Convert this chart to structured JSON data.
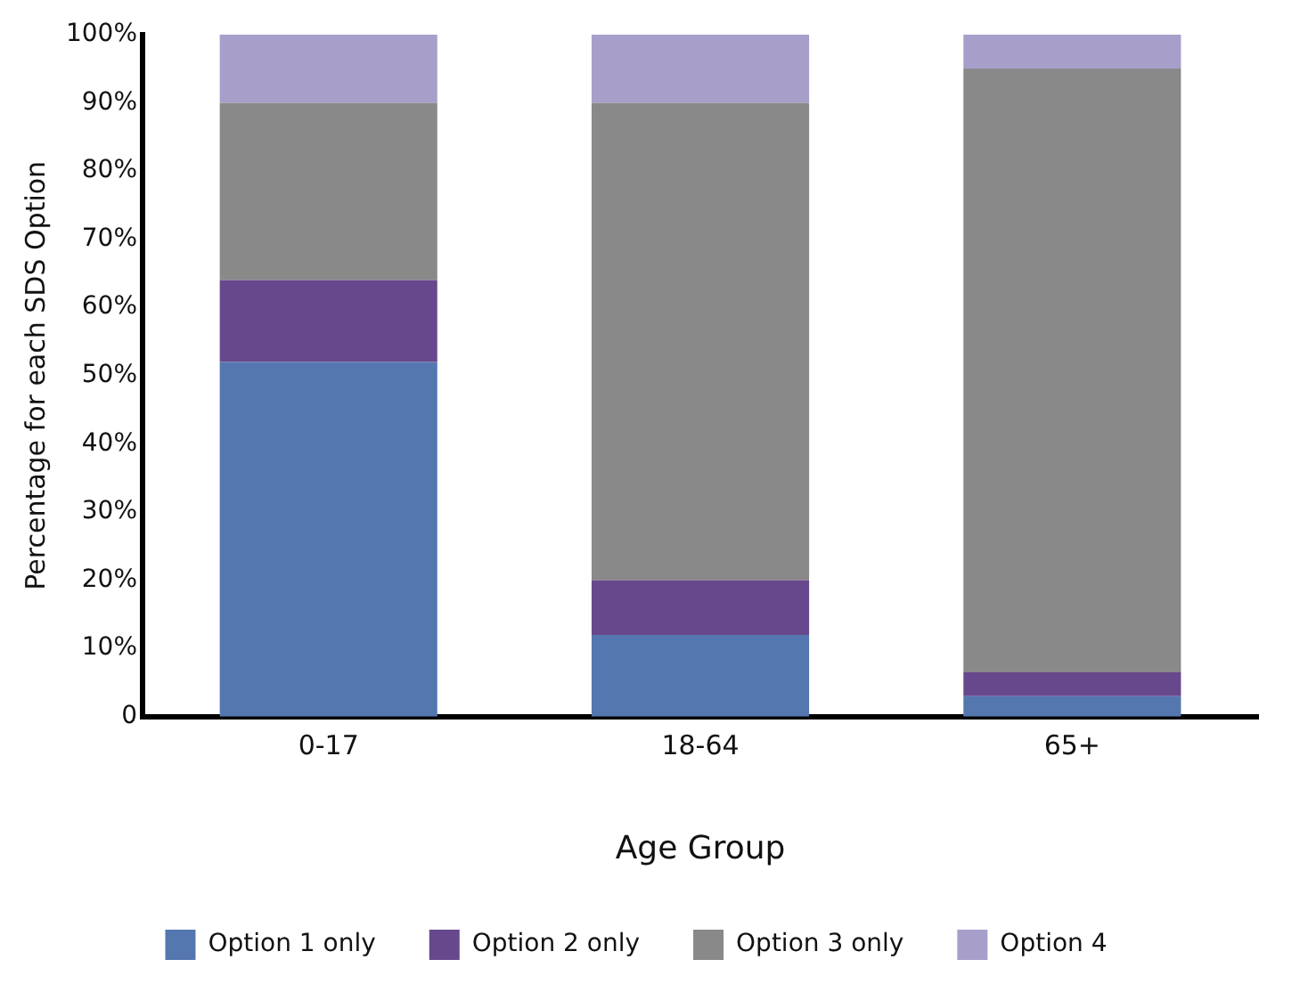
{
  "chart_data": {
    "type": "bar",
    "stacked": true,
    "xlabel": "Age Group",
    "ylabel": "Percentage for each SDS Option",
    "categories": [
      "0-17",
      "18-64",
      "65+"
    ],
    "series": [
      {
        "name": "Option 1 only",
        "color": "#5577b0",
        "values": [
          52,
          12,
          3
        ]
      },
      {
        "name": "Option 2 only",
        "color": "#68488c",
        "values": [
          12,
          8,
          3.5
        ]
      },
      {
        "name": "Option 3 only",
        "color": "#898989",
        "values": [
          26,
          70,
          88.5
        ]
      },
      {
        "name": "Option 4",
        "color": "#a79fc9",
        "values": [
          10,
          10,
          5
        ]
      }
    ],
    "ylim": [
      0,
      100
    ],
    "yticks": [
      {
        "value": 0,
        "label": "0"
      },
      {
        "value": 10,
        "label": "10%"
      },
      {
        "value": 20,
        "label": "20%"
      },
      {
        "value": 30,
        "label": "30%"
      },
      {
        "value": 40,
        "label": "40%"
      },
      {
        "value": 50,
        "label": "50%"
      },
      {
        "value": 60,
        "label": "60%"
      },
      {
        "value": 70,
        "label": "70%"
      },
      {
        "value": 80,
        "label": "80%"
      },
      {
        "value": 90,
        "label": "90%"
      },
      {
        "value": 100,
        "label": "100%"
      }
    ],
    "grid": false,
    "legend": "bottom"
  }
}
